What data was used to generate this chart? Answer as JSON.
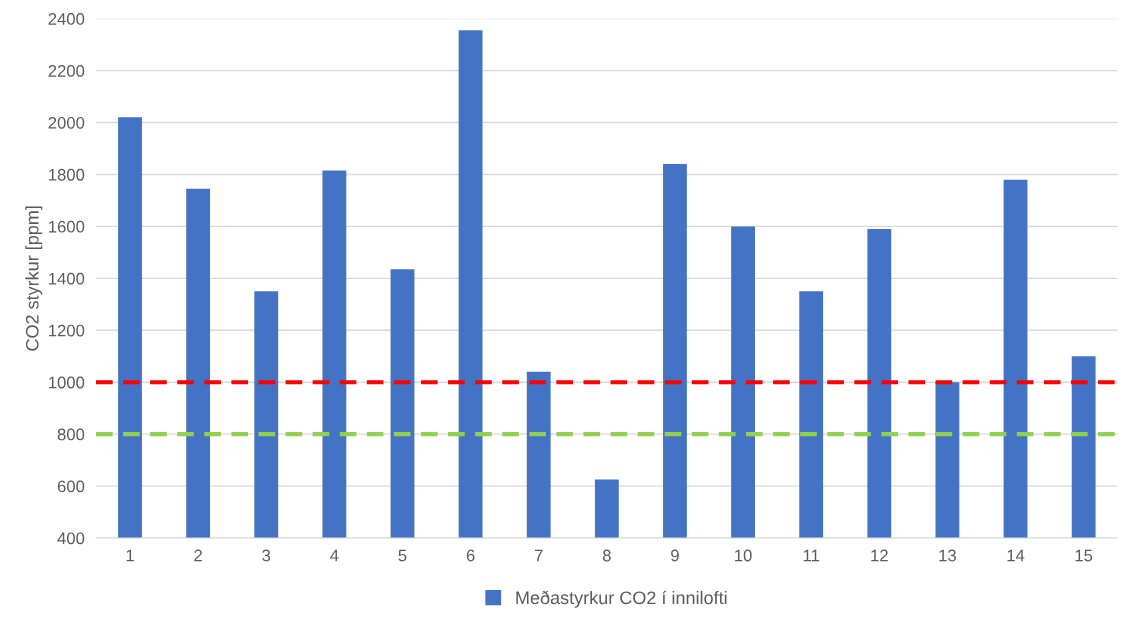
{
  "chart_data": {
    "type": "bar",
    "ylabel": "CO2 styrkur [ppm]",
    "categories": [
      "1",
      "2",
      "3",
      "4",
      "5",
      "6",
      "7",
      "8",
      "9",
      "10",
      "11",
      "12",
      "13",
      "14",
      "15"
    ],
    "series": [
      {
        "name": "Meðastyrkur CO2 í innilofti",
        "color": "#4472c4",
        "values": [
          2020,
          1745,
          1350,
          1815,
          1435,
          2355,
          1040,
          625,
          1840,
          1600,
          1350,
          1590,
          1000,
          1780,
          1100
        ]
      }
    ],
    "ylim": [
      400,
      2400
    ],
    "yticks": [
      400,
      600,
      800,
      1000,
      1200,
      1400,
      1600,
      1800,
      2000,
      2200,
      2400
    ],
    "ref_lines": [
      {
        "axis": "y",
        "value": 1000,
        "color": "#ff0000",
        "line_style": "dashed"
      },
      {
        "axis": "y",
        "value": 800,
        "color": "#92d050",
        "line_style": "dashed"
      }
    ],
    "grid": "y",
    "legend": "bottom"
  }
}
